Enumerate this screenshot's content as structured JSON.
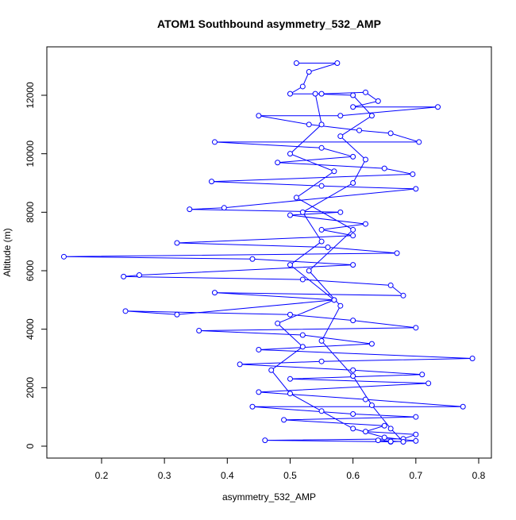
{
  "chart_data": {
    "type": "line",
    "title": "ATOM1 Southbound asymmetry_532_AMP",
    "x_label": "asymmetry_532_AMP",
    "y_label": "Altitude (m)",
    "color": "#0000ff",
    "markers": true,
    "x": [
      0.51,
      0.575,
      0.53,
      0.52,
      0.5,
      0.55,
      0.62,
      0.64,
      0.6,
      0.735,
      0.58,
      0.45,
      0.53,
      0.61,
      0.66,
      0.705,
      0.38,
      0.55,
      0.6,
      0.48,
      0.65,
      0.695,
      0.375,
      0.55,
      0.7,
      0.395,
      0.34,
      0.58,
      0.5,
      0.62,
      0.55,
      0.6,
      0.32,
      0.56,
      0.67,
      0.14,
      0.44,
      0.6,
      0.26,
      0.235,
      0.52,
      0.66,
      0.68,
      0.38,
      0.57,
      0.32,
      0.238,
      0.5,
      0.6,
      0.7,
      0.355,
      0.52,
      0.63,
      0.45,
      0.79,
      0.55,
      0.42,
      0.6,
      0.71,
      0.5,
      0.72,
      0.45,
      0.62,
      0.775,
      0.44,
      0.6,
      0.7,
      0.49,
      0.65,
      0.62,
      0.7,
      0.68,
      0.46,
      0.66,
      0.7,
      0.65,
      0.6,
      0.55,
      0.5,
      0.47,
      0.52,
      0.48,
      0.57,
      0.5,
      0.55,
      0.52,
      0.6,
      0.62,
      0.58,
      0.63,
      0.6,
      0.54,
      0.55,
      0.5,
      0.57,
      0.51,
      0.6,
      0.53,
      0.58,
      0.55,
      0.6,
      0.63,
      0.66,
      0.68,
      0.64,
      0.66
    ],
    "values": [
      13100,
      13100,
      12800,
      12300,
      12050,
      12050,
      12100,
      11800,
      11600,
      11600,
      11300,
      11300,
      11000,
      10800,
      10700,
      10400,
      10400,
      10200,
      9900,
      9700,
      9500,
      9300,
      9050,
      8900,
      8800,
      8150,
      8100,
      8000,
      7900,
      7600,
      7400,
      7200,
      6950,
      6800,
      6600,
      6480,
      6400,
      6200,
      5850,
      5800,
      5700,
      5500,
      5150,
      5250,
      5000,
      4500,
      4620,
      4500,
      4300,
      4050,
      3950,
      3800,
      3500,
      3300,
      3000,
      2900,
      2800,
      2600,
      2450,
      2300,
      2150,
      1850,
      1600,
      1350,
      1350,
      1100,
      1000,
      900,
      700,
      500,
      400,
      250,
      200,
      150,
      180,
      300,
      600,
      1200,
      1800,
      2600,
      3400,
      4200,
      5000,
      6200,
      7000,
      8000,
      9000,
      9800,
      10600,
      11300,
      12000,
      12050,
      11000,
      10000,
      9400,
      8500,
      7400,
      6000,
      4800,
      3600,
      2400,
      1400,
      600,
      150,
      200,
      160
    ],
    "xlim": [
      0.1129,
      0.8202
    ],
    "ylim": [
      -407,
      13656
    ],
    "xticks": [
      0.2,
      0.3,
      0.4,
      0.5,
      0.6,
      0.7,
      0.8
    ],
    "yticks": [
      0,
      2000,
      4000,
      6000,
      8000,
      10000,
      12000
    ]
  }
}
